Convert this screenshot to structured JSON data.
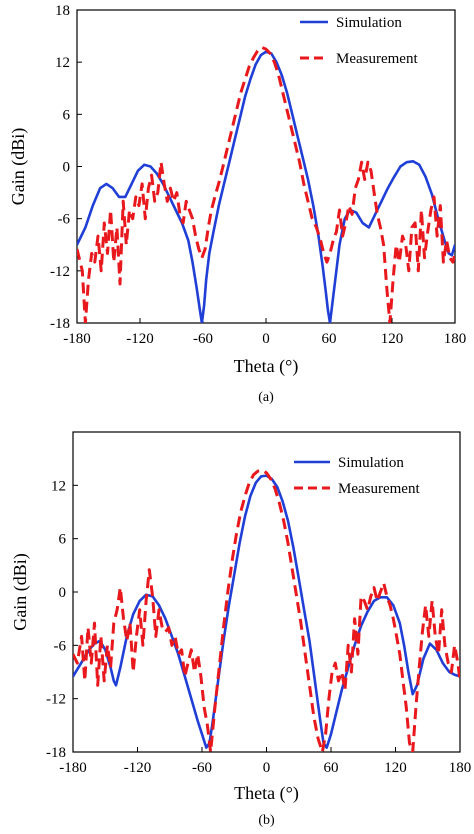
{
  "chart_data": [
    {
      "type": "line",
      "panel_label": "(a)",
      "xlabel": "Theta (°)",
      "ylabel": "Gain (dBi)",
      "xlim": [
        -180,
        180
      ],
      "ylim": [
        -18,
        18
      ],
      "xticks": [
        -180,
        -120,
        -60,
        0,
        60,
        120,
        180
      ],
      "yticks": [
        -18,
        -12,
        -6,
        0,
        6,
        12,
        18
      ],
      "legend_position": "top-right",
      "grid": false,
      "series": [
        {
          "name": "Simulation",
          "color": "#1f3fd6",
          "dash": "solid",
          "x": [
            -180,
            -172,
            -165,
            -158,
            -152,
            -146,
            -140,
            -134,
            -128,
            -122,
            -116,
            -110,
            -104,
            -98,
            -92,
            -86,
            -80,
            -74,
            -70,
            -66,
            -63,
            -61,
            -59,
            -57,
            -54,
            -50,
            -45,
            -40,
            -35,
            -30,
            -25,
            -20,
            -15,
            -10,
            -5,
            0,
            5,
            10,
            15,
            20,
            25,
            30,
            35,
            40,
            45,
            50,
            54,
            57,
            59,
            61,
            63,
            66,
            70,
            75,
            80,
            86,
            92,
            98,
            104,
            110,
            116,
            122,
            128,
            134,
            140,
            146,
            152,
            158,
            164,
            170,
            174,
            177,
            180
          ],
          "y": [
            -9,
            -7,
            -4.5,
            -2.5,
            -2,
            -2.5,
            -3.5,
            -3.5,
            -2,
            -0.5,
            0.2,
            0,
            -0.8,
            -2,
            -3.5,
            -5,
            -6.5,
            -8.5,
            -11,
            -14,
            -16.5,
            -18,
            -16,
            -13,
            -10,
            -7.5,
            -4.5,
            -2,
            0.5,
            3,
            5.5,
            8,
            10,
            11.7,
            12.8,
            13.2,
            13,
            12,
            10.5,
            8.5,
            6,
            3.5,
            1,
            -1.5,
            -4.5,
            -8,
            -11.5,
            -14.5,
            -16.5,
            -18,
            -16,
            -13,
            -9,
            -6,
            -5,
            -5.3,
            -6.5,
            -7,
            -5.5,
            -4,
            -2.5,
            -1.2,
            0,
            0.5,
            0.6,
            0.2,
            -1.2,
            -3.2,
            -6,
            -8.5,
            -10,
            -10.2,
            -9
          ]
        },
        {
          "name": "Measurement",
          "color": "#e8181d",
          "dash": "dashed",
          "x": [
            -180,
            -175,
            -172,
            -169,
            -166,
            -163,
            -160,
            -157,
            -154,
            -151,
            -148,
            -145,
            -142,
            -139,
            -136,
            -133,
            -130,
            -127,
            -124,
            -121,
            -118,
            -115,
            -112,
            -109,
            -106,
            -103,
            -100,
            -97,
            -94,
            -91,
            -88,
            -85,
            -82,
            -79,
            -76,
            -73,
            -70,
            -67,
            -64,
            -61,
            -58,
            -55,
            -52,
            -48,
            -44,
            -40,
            -36,
            -32,
            -28,
            -24,
            -20,
            -16,
            -12,
            -8,
            -4,
            0,
            4,
            8,
            12,
            16,
            20,
            24,
            28,
            32,
            36,
            40,
            44,
            48,
            52,
            55,
            58,
            61,
            64,
            67,
            70,
            73,
            76,
            79,
            82,
            85,
            88,
            91,
            94,
            97,
            100,
            103,
            106,
            109,
            112,
            115,
            118,
            121,
            124,
            127,
            130,
            133,
            136,
            139,
            142,
            145,
            148,
            151,
            154,
            157,
            160,
            163,
            166,
            169,
            172,
            175,
            178,
            180
          ],
          "y": [
            -9.5,
            -12,
            -18,
            -13,
            -10,
            -11,
            -8,
            -12,
            -6.5,
            -10,
            -5,
            -11,
            -7,
            -13.5,
            -4,
            -9,
            -5,
            -6,
            -3.5,
            -4.5,
            -2,
            -6,
            -2.5,
            -1,
            -4,
            -3,
            0.5,
            -2,
            -4,
            -2.5,
            -4,
            -3,
            -5.5,
            -6.5,
            -4,
            -5,
            -6,
            -8,
            -9.5,
            -10.5,
            -9.5,
            -7,
            -5,
            -3.2,
            -1.5,
            0.5,
            2.5,
            4.5,
            6.5,
            8.5,
            10,
            11.5,
            12.5,
            13.3,
            13.7,
            13.5,
            13,
            12,
            10.5,
            8.5,
            6.5,
            4.5,
            2.5,
            0.5,
            -2,
            -4,
            -6,
            -7,
            -8.5,
            -10,
            -11,
            -10,
            -8.5,
            -7.5,
            -5,
            -8,
            -6.5,
            -4.5,
            -5.5,
            -2.5,
            -1.5,
            0.5,
            -1.5,
            0.5,
            -0.5,
            -3,
            -5.5,
            -7,
            -9,
            -14,
            -18,
            -13,
            -9,
            -11,
            -8,
            -9,
            -12,
            -7,
            -6.5,
            -12,
            -5,
            -10.5,
            -7.5,
            -5,
            -3.5,
            -8,
            -4.5,
            -11,
            -8.5,
            -10.5,
            -11,
            -10
          ]
        }
      ]
    },
    {
      "type": "line",
      "panel_label": "(b)",
      "xlabel": "Theta (°)",
      "ylabel": "Gain (dBi)",
      "xlim": [
        -180,
        180
      ],
      "ylim": [
        -18,
        18
      ],
      "xticks": [
        -180,
        -120,
        -60,
        0,
        60,
        120,
        180
      ],
      "xtick_labels": [
        "-180",
        "-120",
        "-60",
        "0",
        "60",
        "120",
        "180"
      ],
      "yticks": [
        -18,
        -12,
        -6,
        0,
        6,
        12
      ],
      "legend_position": "top-right",
      "grid": false,
      "series": [
        {
          "name": "Simulation",
          "color": "#1f3fd6",
          "dash": "solid",
          "x": [
            -180,
            -175,
            -170,
            -165,
            -160,
            -155,
            -150,
            -145,
            -142,
            -140,
            -136,
            -130,
            -124,
            -118,
            -112,
            -106,
            -100,
            -94,
            -88,
            -82,
            -76,
            -70,
            -64,
            -60,
            -56,
            -53,
            -50,
            -45,
            -40,
            -35,
            -30,
            -25,
            -20,
            -15,
            -10,
            -5,
            0,
            5,
            10,
            15,
            20,
            25,
            30,
            35,
            40,
            45,
            50,
            53,
            56,
            60,
            64,
            70,
            76,
            82,
            88,
            94,
            100,
            106,
            112,
            118,
            124,
            128,
            132,
            136,
            140,
            146,
            152,
            158,
            164,
            170,
            175,
            180
          ],
          "y": [
            -9.5,
            -8.5,
            -7.5,
            -6.5,
            -5.8,
            -5.5,
            -6.5,
            -8.5,
            -10,
            -10.5,
            -8.5,
            -5,
            -2.5,
            -1,
            -0.3,
            -0.5,
            -1.5,
            -3,
            -5,
            -7,
            -9.5,
            -12,
            -14.5,
            -16,
            -17.5,
            -17,
            -14.5,
            -10,
            -5.5,
            -1.5,
            2,
            5.5,
            8.5,
            10.8,
            12.3,
            13,
            13.1,
            12.7,
            11.8,
            10.2,
            8,
            5,
            1.5,
            -2,
            -5.5,
            -10,
            -14.5,
            -17,
            -17.5,
            -16,
            -14,
            -11,
            -8.5,
            -6,
            -3.8,
            -2.2,
            -1,
            -0.6,
            -0.6,
            -1.5,
            -3.5,
            -6,
            -9,
            -11.5,
            -10.5,
            -7.5,
            -5.8,
            -6.5,
            -8,
            -9,
            -9.3,
            -9.5
          ]
        },
        {
          "name": "Measurement",
          "color": "#e8181d",
          "dash": "dashed",
          "x": [
            -180,
            -176,
            -172,
            -169,
            -166,
            -163,
            -160,
            -157,
            -154,
            -151,
            -148,
            -145,
            -142,
            -139,
            -136,
            -133,
            -130,
            -127,
            -124,
            -121,
            -118,
            -115,
            -112,
            -109,
            -106,
            -103,
            -100,
            -97,
            -94,
            -91,
            -88,
            -85,
            -82,
            -79,
            -76,
            -73,
            -70,
            -67,
            -64,
            -61,
            -58,
            -55,
            -52,
            -48,
            -44,
            -40,
            -36,
            -32,
            -28,
            -24,
            -20,
            -16,
            -12,
            -8,
            -4,
            0,
            4,
            8,
            12,
            16,
            20,
            24,
            28,
            32,
            36,
            40,
            44,
            48,
            52,
            55,
            58,
            61,
            64,
            67,
            70,
            73,
            76,
            79,
            82,
            85,
            88,
            91,
            94,
            97,
            100,
            103,
            106,
            109,
            112,
            115,
            118,
            121,
            124,
            127,
            130,
            133,
            136,
            139,
            142,
            145,
            148,
            151,
            154,
            157,
            160,
            163,
            166,
            169,
            172,
            175,
            178,
            180
          ],
          "y": [
            -7,
            -8,
            -5,
            -10,
            -4,
            -8,
            -3.5,
            -10.5,
            -5,
            -10,
            -6,
            -8.5,
            -3.5,
            -2,
            0.5,
            -3,
            -5.5,
            -3.5,
            -9,
            -5,
            -2,
            -6,
            -1,
            2.5,
            -0.5,
            -5,
            -2,
            -4,
            -4.5,
            -4,
            -6,
            -5,
            -7,
            -6.5,
            -9.5,
            -8,
            -6.5,
            -9,
            -7,
            -9.5,
            -13,
            -15,
            -18,
            -13,
            -8.5,
            -4,
            0,
            3.5,
            6.5,
            9,
            10.8,
            12.3,
            13.2,
            13.6,
            13.7,
            13.4,
            12.7,
            11.6,
            10,
            8,
            5.5,
            2.5,
            -0.5,
            -3.5,
            -7,
            -10.5,
            -14,
            -16.5,
            -18,
            -16,
            -12,
            -9,
            -8,
            -10,
            -9,
            -11,
            -6,
            -9,
            -3,
            -7,
            -0.5,
            -1,
            -2,
            -0.5,
            0.5,
            -1,
            0,
            1,
            -0.5,
            -1.5,
            -3,
            -5,
            -7,
            -10,
            -13,
            -17,
            -18,
            -13,
            -8.5,
            -4.5,
            -1.5,
            -5,
            -1,
            -5,
            -7,
            -2,
            -6,
            -8,
            -9,
            -6,
            -8,
            -10
          ]
        }
      ]
    }
  ]
}
